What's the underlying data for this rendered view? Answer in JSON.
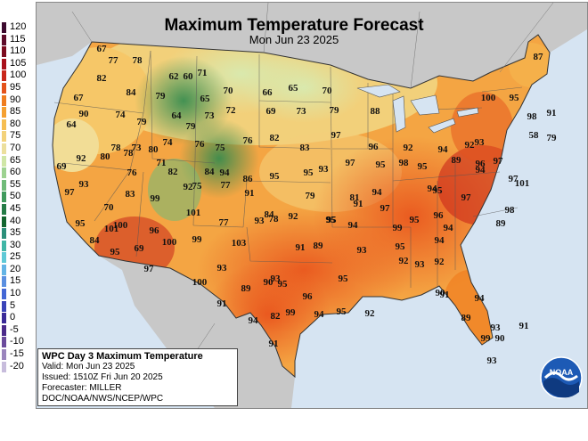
{
  "title": "Maximum Temperature Forecast",
  "subtitle": "Mon Jun 23 2025",
  "legend": {
    "labels": [
      "120",
      "115",
      "110",
      "105",
      "100",
      "95",
      "90",
      "85",
      "80",
      "75",
      "70",
      "65",
      "60",
      "55",
      "50",
      "45",
      "40",
      "35",
      "30",
      "25",
      "20",
      "15",
      "10",
      "5",
      "0",
      "-5",
      "-10",
      "-15",
      "-20"
    ],
    "colors": [
      "#3d0a2e",
      "#5e0c2a",
      "#7c0b1e",
      "#a8101b",
      "#c9271a",
      "#e4521b",
      "#ef7d1f",
      "#f5a030",
      "#f6be52",
      "#f3d27a",
      "#ecdf9d",
      "#cfe6a6",
      "#9dd291",
      "#6fbb78",
      "#3f9a5c",
      "#247c46",
      "#12652e",
      "#2b8f7a",
      "#3fb6a6",
      "#5ec9d6",
      "#63b4e5",
      "#5a8fe0",
      "#4467d5",
      "#3a43b8",
      "#3a2a98",
      "#4b2a8a",
      "#6b4b9c",
      "#9a85bd",
      "#c7bcdc"
    ]
  },
  "infobox": {
    "heading": "WPC Day 3 Maximum Temperature",
    "valid": "Valid: Mon Jun 23 2025",
    "issued": "Issued: 1510Z Fri Jun 20 2025",
    "forecaster": "Forecaster: MILLER",
    "credit": "DOC/NOAA/NWS/NCEP/WPC"
  },
  "logo_text": "NOAA",
  "forecast_values": [
    "67",
    "77",
    "78",
    "82",
    "71",
    "62",
    "60",
    "67",
    "84",
    "79",
    "65",
    "70",
    "66",
    "65",
    "70",
    "90",
    "74",
    "79",
    "64",
    "73",
    "72",
    "69",
    "73",
    "79",
    "88",
    "87",
    "64",
    "79",
    "58",
    "100",
    "95",
    "78",
    "73",
    "74",
    "76",
    "75",
    "76",
    "82",
    "83",
    "97",
    "98",
    "91",
    "79",
    "69",
    "92",
    "80",
    "78",
    "80",
    "71",
    "94",
    "96",
    "92",
    "95",
    "98",
    "93",
    "89",
    "97",
    "97",
    "83",
    "76",
    "82",
    "84",
    "77",
    "86",
    "95",
    "95",
    "93",
    "97",
    "95",
    "94",
    "92",
    "96",
    "93",
    "99",
    "92",
    "75",
    "91",
    "79",
    "81",
    "94",
    "95",
    "94",
    "97",
    "101",
    "95",
    "100",
    "70",
    "101",
    "84",
    "92",
    "95",
    "91",
    "97",
    "94",
    "96",
    "97",
    "98",
    "101",
    "96",
    "99",
    "77",
    "93",
    "78",
    "95",
    "94",
    "99",
    "95",
    "89",
    "84",
    "95",
    "69",
    "100",
    "103",
    "91",
    "89",
    "93",
    "95",
    "94",
    "94",
    "97",
    "93",
    "100",
    "89",
    "90",
    "93",
    "95",
    "96",
    "95",
    "92",
    "93",
    "92",
    "91",
    "94",
    "82",
    "99",
    "94",
    "95",
    "92",
    "90",
    "91",
    "94",
    "91",
    "89",
    "99",
    "93",
    "91",
    "90",
    "93",
    "89",
    "89"
  ]
}
